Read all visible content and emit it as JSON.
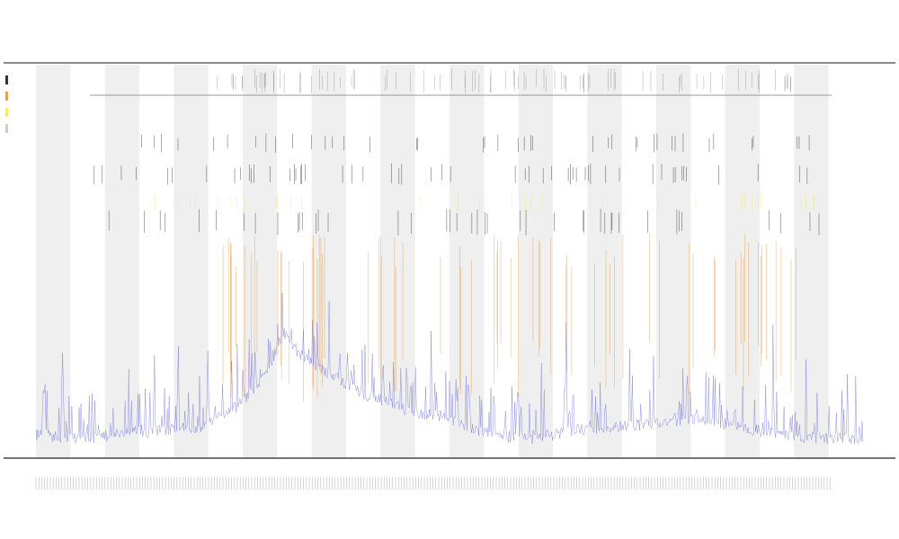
{
  "chart_data": {
    "type": "line",
    "title": "",
    "subtitle": "",
    "xlabel": "",
    "ylabel": "",
    "grid": false,
    "legend_position": "top-left",
    "x_range": [
      0,
      1
    ],
    "y_range": [
      0,
      1
    ],
    "band_count": 12,
    "band_color": "#efefef",
    "trace_color": "#6b6bdc",
    "peak_colors": [
      "#000000",
      "#e08a2c",
      "#f2e64a",
      "#c2c2c2"
    ],
    "series": [
      {
        "color": "#6b6bdc",
        "x": [
          0.0,
          0.05,
          0.1,
          0.15,
          0.2,
          0.25,
          0.28,
          0.3,
          0.32,
          0.35,
          0.4,
          0.45,
          0.5,
          0.55,
          0.6,
          0.65,
          0.7,
          0.75,
          0.8,
          0.85,
          0.9,
          0.95,
          1.0
        ],
        "y": [
          0.06,
          0.05,
          0.06,
          0.07,
          0.08,
          0.14,
          0.22,
          0.32,
          0.26,
          0.22,
          0.16,
          0.12,
          0.1,
          0.06,
          0.05,
          0.07,
          0.08,
          0.09,
          0.1,
          0.08,
          0.06,
          0.05,
          0.05
        ]
      }
    ]
  }
}
